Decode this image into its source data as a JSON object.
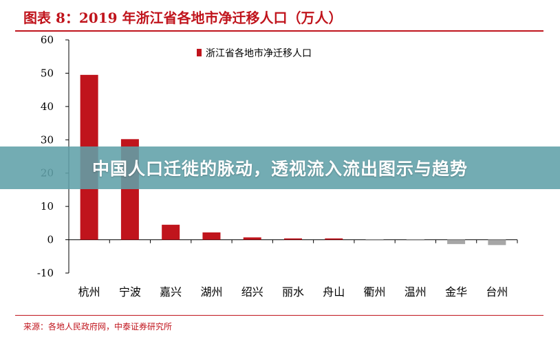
{
  "header": {
    "title": "图表 8：2019 年浙江省各地市净迁移人口（万人）"
  },
  "footer": {
    "source": "来源：各地人民政府网，中泰证券研究所"
  },
  "banner": {
    "text": "中国人口迁徙的脉动，透视流入流出图示与趋势"
  },
  "colors": {
    "accent": "#c0141c",
    "positive_bar": "#c0141c",
    "negative_bar": "#a6a6a6",
    "banner_bg": "#60a0a8"
  },
  "chart_data": {
    "type": "bar",
    "title": "图表 8：2019 年浙江省各地市净迁移人口（万人）",
    "categories": [
      "杭州",
      "宁波",
      "嘉兴",
      "湖州",
      "绍兴",
      "丽水",
      "舟山",
      "衢州",
      "温州",
      "金华",
      "台州"
    ],
    "series": [
      {
        "name": "浙江省各地市净迁移人口",
        "values": [
          49.5,
          30.2,
          4.5,
          2.2,
          0.7,
          0.4,
          0.4,
          -0.1,
          -0.2,
          -1.3,
          -1.6
        ]
      }
    ],
    "ylim": [
      -10,
      60
    ],
    "yticks": [
      -10,
      0,
      10,
      20,
      30,
      40,
      50,
      60
    ],
    "xlabel": "",
    "ylabel": "",
    "legend": "top",
    "grid": false
  }
}
